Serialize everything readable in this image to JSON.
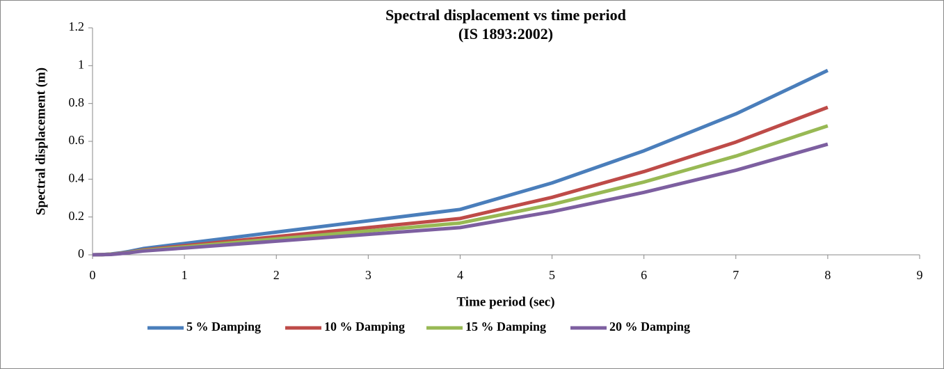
{
  "chart_data": {
    "type": "line",
    "title": "Spectral displacement vs time period",
    "subtitle": "(IS 1893:2002)",
    "x_label": "Time period (sec)",
    "y_label": "Spectral displacement (m)",
    "x": [
      0,
      0.1,
      0.2,
      0.3,
      0.4,
      0.55,
      1,
      2,
      3,
      4,
      5,
      6,
      7,
      8
    ],
    "series": [
      {
        "name": "5 % Damping",
        "color": "#4a7ebb",
        "values": [
          0,
          0.001,
          0.004,
          0.01,
          0.018,
          0.033,
          0.06,
          0.12,
          0.18,
          0.24,
          0.38,
          0.55,
          0.745,
          0.975
        ]
      },
      {
        "name": "10 % Damping",
        "color": "#be4b48",
        "values": [
          0,
          0.001,
          0.003,
          0.008,
          0.014,
          0.026,
          0.048,
          0.096,
          0.144,
          0.192,
          0.304,
          0.44,
          0.596,
          0.78
        ]
      },
      {
        "name": "15 % Damping",
        "color": "#98b954",
        "values": [
          0,
          0.001,
          0.003,
          0.007,
          0.013,
          0.023,
          0.042,
          0.084,
          0.126,
          0.168,
          0.266,
          0.385,
          0.522,
          0.682
        ]
      },
      {
        "name": "20 % Damping",
        "color": "#7d5fa0",
        "values": [
          0,
          0.001,
          0.002,
          0.006,
          0.011,
          0.02,
          0.036,
          0.072,
          0.108,
          0.144,
          0.228,
          0.33,
          0.447,
          0.585
        ]
      }
    ],
    "xlim": [
      0,
      9
    ],
    "xticks": [
      0,
      1,
      2,
      3,
      4,
      5,
      6,
      7,
      8,
      9
    ],
    "ylim": [
      0,
      1.2
    ],
    "yticks": [
      0,
      0.2,
      0.4,
      0.6,
      0.8,
      1,
      1.2
    ],
    "grid": false,
    "legend": "bottom"
  }
}
